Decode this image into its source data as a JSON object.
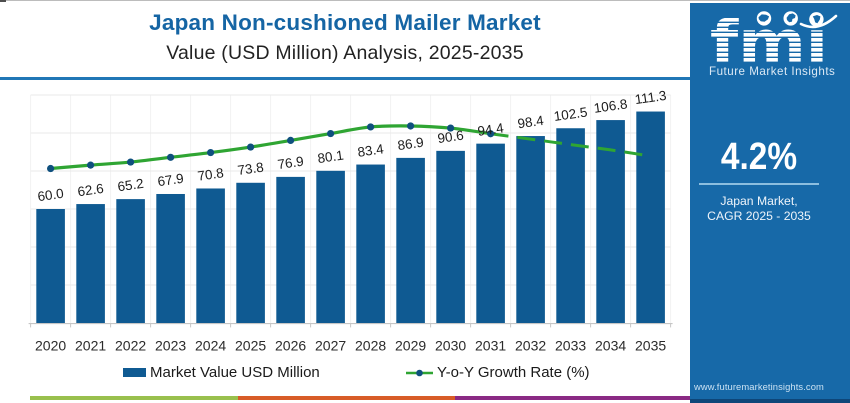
{
  "header": {
    "title": "Japan Non-cushioned Mailer Market",
    "subtitle": "Value (USD Million) Analysis, 2025-2035"
  },
  "chart_data": {
    "type": "bar",
    "categories": [
      "2020",
      "2021",
      "2022",
      "2023",
      "2024",
      "2025",
      "2026",
      "2027",
      "2028",
      "2029",
      "2030",
      "2031",
      "2032",
      "2033",
      "2034",
      "2035"
    ],
    "series": [
      {
        "name": "Market Value USD Million",
        "type": "bar",
        "values": [
          60.0,
          62.6,
          65.2,
          67.9,
          70.8,
          73.8,
          76.9,
          80.1,
          83.4,
          86.9,
          90.6,
          94.4,
          98.4,
          102.5,
          106.8,
          111.3
        ],
        "labels": [
          "60.0",
          "62.6",
          "65.2",
          "67.9",
          "70.8",
          "73.8",
          "76.9",
          "80.1",
          "83.4",
          "86.9",
          "90.6",
          "94.4",
          "98.4",
          "102.5",
          "106.8",
          "111.3"
        ],
        "color": "#0f5a92"
      },
      {
        "name": "Y-o-Y Growth Rate (%)",
        "type": "line",
        "axis": "secondary-unlabeled",
        "curve_y_value_axis_units": [
          81.3,
          83.1,
          84.7,
          87.2,
          89.7,
          92.6,
          96.1,
          99.7,
          103.2,
          103.7,
          102.6,
          99.6,
          96.8,
          93.9,
          91.1,
          87.9
        ],
        "solid_until_index": 11,
        "color": "#2fa533",
        "marker_color": "#0f507e"
      }
    ],
    "title": "Japan Non-cushioned Mailer Market",
    "subtitle": "Value (USD Million) Analysis, 2025-2035",
    "xlabel": "",
    "ylabel": "",
    "ylim": [
      0,
      120
    ],
    "grid_step": 20,
    "grid": true,
    "y_tick_labels_visible": false,
    "legend_position": "bottom",
    "legend": [
      "Market Value USD Million",
      "Y-o-Y Growth Rate (%)"
    ]
  },
  "legend": {
    "bar_label": "Market Value USD Million",
    "line_label": "Y-o-Y Growth Rate (%)"
  },
  "sidebar": {
    "logo_text": "fmı",
    "logo_tagline": "Future Market Insights",
    "cagr_value": "4.2%",
    "cagr_label_line1": "Japan Market,",
    "cagr_label_line2": "CAGR 2025 - 2035",
    "website": "www.futuremarketinsights.com"
  },
  "colors": {
    "bar": "#0f5a92",
    "line": "#2fa533",
    "marker": "#0f507e",
    "title": "#1565a4",
    "sidebar_bg": "#1769a8",
    "stripe_green": "#99c04d",
    "stripe_orange": "#d85c27",
    "stripe_purple": "#8a2a84"
  }
}
